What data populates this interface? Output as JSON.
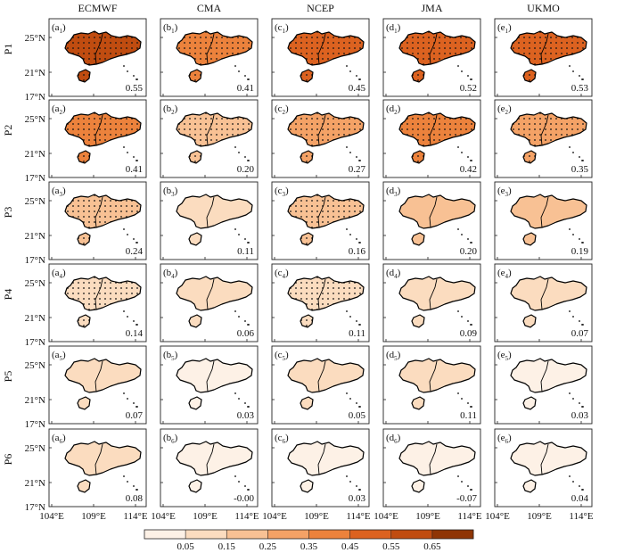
{
  "columns": [
    "ECMWF",
    "CMA",
    "NCEP",
    "JMA",
    "UKMO"
  ],
  "panel_letters": [
    "a",
    "b",
    "c",
    "d",
    "e"
  ],
  "rows": [
    {
      "label": "P1",
      "index": "1",
      "values": [
        "0.55",
        "0.41",
        "0.45",
        "0.52",
        "0.53"
      ],
      "levels": [
        0.55,
        0.41,
        0.45,
        0.52,
        0.53
      ],
      "dots": [
        true,
        true,
        true,
        true,
        true
      ]
    },
    {
      "label": "P2",
      "index": "2",
      "values": [
        "0.41",
        "0.20",
        "0.27",
        "0.42",
        "0.35"
      ],
      "levels": [
        0.41,
        0.2,
        0.27,
        0.42,
        0.35
      ],
      "dots": [
        true,
        true,
        true,
        true,
        true
      ]
    },
    {
      "label": "P3",
      "index": "3",
      "values": [
        "0.24",
        "0.11",
        "0.16",
        "0.20",
        "0.19"
      ],
      "levels": [
        0.24,
        0.11,
        0.16,
        0.2,
        0.19
      ],
      "dots": [
        true,
        false,
        true,
        false,
        false
      ]
    },
    {
      "label": "P4",
      "index": "4",
      "values": [
        "0.14",
        "0.06",
        "0.11",
        "0.09",
        "0.07"
      ],
      "levels": [
        0.14,
        0.06,
        0.11,
        0.09,
        0.07
      ],
      "dots": [
        true,
        false,
        true,
        false,
        false
      ]
    },
    {
      "label": "P5",
      "index": "5",
      "values": [
        "0.07",
        "0.03",
        "0.05",
        "0.11",
        "0.03"
      ],
      "levels": [
        0.07,
        0.03,
        0.05,
        0.11,
        0.03
      ],
      "dots": [
        false,
        false,
        false,
        false,
        false
      ]
    },
    {
      "label": "P6",
      "index": "6",
      "values": [
        "0.08",
        "-0.00",
        "0.03",
        "-0.07",
        "0.04"
      ],
      "levels": [
        0.08,
        0.0,
        0.03,
        0.0,
        0.04
      ],
      "dots": [
        false,
        false,
        false,
        false,
        false
      ]
    }
  ],
  "lat_ticks": [
    "25°N",
    "21°N",
    "17°N"
  ],
  "lon_ticks": [
    "104°E",
    "109°E",
    "114°E"
  ],
  "colorbar": {
    "tick_labels": [
      "0.05",
      "0.15",
      "0.25",
      "0.35",
      "0.45",
      "0.55",
      "0.65"
    ],
    "colors": [
      "#fdf1e6",
      "#fbdcbf",
      "#f8c194",
      "#f4a266",
      "#ec823c",
      "#dc6220",
      "#c04c10",
      "#8f3505"
    ]
  }
}
